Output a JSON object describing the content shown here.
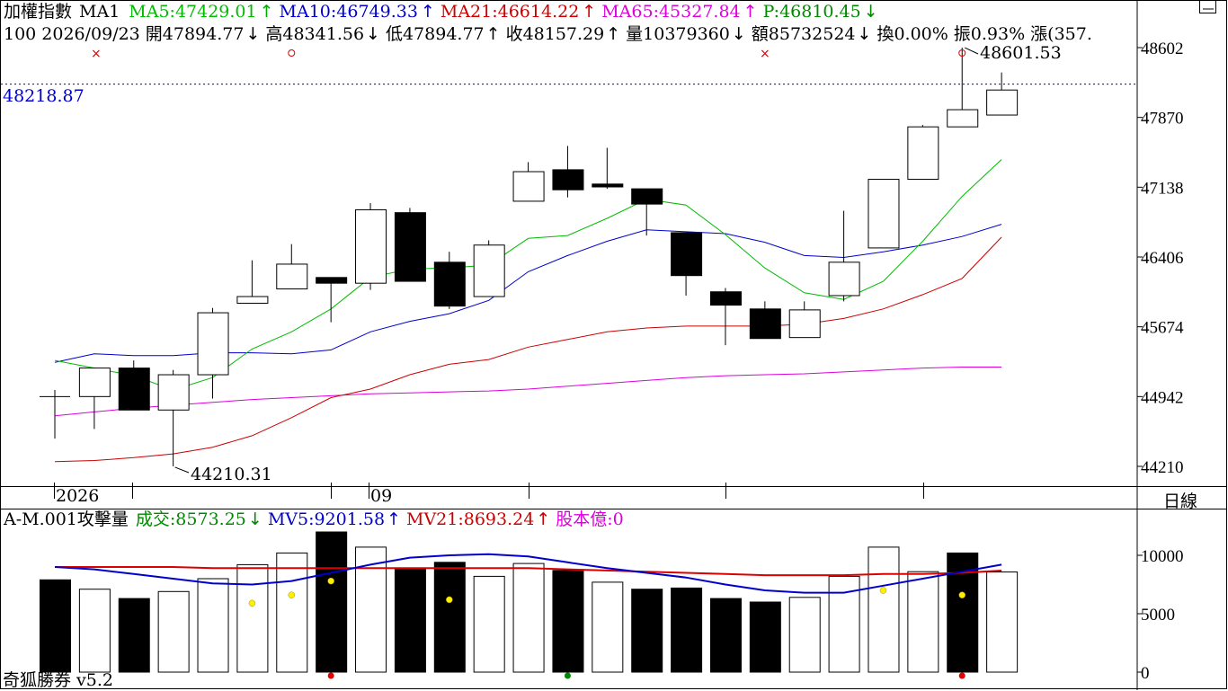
{
  "price_header": {
    "title": "加權指數",
    "ma_label": "MA1",
    "ma5": "MA5:47429.01",
    "ma10": "MA10:46749.33",
    "ma21": "MA21:46614.22",
    "ma65": "MA65:45327.84",
    "p": "P:46810.45"
  },
  "quote_line": {
    "no": "100",
    "date": "2026/09/23",
    "open": "開47894.77",
    "high": "高48341.56",
    "low": "低47894.77",
    "close": "收48157.29",
    "volume": "量10379360",
    "amount": "額85732524",
    "turnover": "換0.00%",
    "amplitude": "振0.93%",
    "change": "漲(357."
  },
  "cursor_value": "48218.87",
  "max_label": "48601.53",
  "min_label": "44210.31",
  "timeframe_label": "日線",
  "x_labels": [
    "2026",
    "09"
  ],
  "volume_header": {
    "title": "A-M.001攻擊量",
    "volume": "成交:8573.25",
    "mv5": "MV5:9201.58",
    "mv21": "MV21:8693.24",
    "capital": "股本億:0"
  },
  "footer": "奇狐勝券 v5.2",
  "colors": {
    "ma5": "#00bb00",
    "ma10": "#0000cc",
    "ma21": "#cc0000",
    "ma65": "#dd00dd",
    "p": "#008800",
    "up_arrow_ma": "#00aa00",
    "grid": "#000000"
  },
  "chart_data": [
    {
      "type": "candlestick",
      "yticks": [
        48602,
        47870,
        47138,
        46406,
        45674,
        44942,
        44210
      ],
      "ylim": [
        44210,
        48602
      ],
      "dotted_line_value": 48218.87,
      "candles": [
        {
          "o": 44942,
          "h": 45011,
          "l": 44501,
          "c": 44942
        },
        {
          "o": 44942,
          "h": 45241,
          "l": 44602,
          "c": 45241
        },
        {
          "o": 45241,
          "h": 45321,
          "l": 44801,
          "c": 44801
        },
        {
          "o": 44801,
          "h": 45221,
          "l": 44210.31,
          "c": 45171
        },
        {
          "o": 45171,
          "h": 45871,
          "l": 44921,
          "c": 45821
        },
        {
          "o": 45921,
          "h": 46371,
          "l": 45921,
          "c": 45991
        },
        {
          "o": 46071,
          "h": 46541,
          "l": 46071,
          "c": 46331
        },
        {
          "o": 46191,
          "h": 46191,
          "l": 45721,
          "c": 46131
        },
        {
          "o": 46131,
          "h": 46971,
          "l": 46061,
          "c": 46901
        },
        {
          "o": 46871,
          "h": 46921,
          "l": 46151,
          "c": 46151
        },
        {
          "o": 46351,
          "h": 46461,
          "l": 45861,
          "c": 45891
        },
        {
          "o": 45991,
          "h": 46581,
          "l": 45991,
          "c": 46531
        },
        {
          "o": 46991,
          "h": 47401,
          "l": 46991,
          "c": 47301
        },
        {
          "o": 47321,
          "h": 47571,
          "l": 47031,
          "c": 47111
        },
        {
          "o": 47171,
          "h": 47551,
          "l": 47121,
          "c": 47141
        },
        {
          "o": 47121,
          "h": 47121,
          "l": 46631,
          "c": 46961
        },
        {
          "o": 46661,
          "h": 46661,
          "l": 46001,
          "c": 46211
        },
        {
          "o": 46041,
          "h": 46081,
          "l": 45481,
          "c": 45901
        },
        {
          "o": 45861,
          "h": 45941,
          "l": 45551,
          "c": 45551
        },
        {
          "o": 45561,
          "h": 45941,
          "l": 45561,
          "c": 45851
        },
        {
          "o": 46001,
          "h": 46891,
          "l": 45941,
          "c": 46351
        },
        {
          "o": 46501,
          "h": 47221,
          "l": 46501,
          "c": 47221
        },
        {
          "o": 47221,
          "h": 47791,
          "l": 47221,
          "c": 47771
        },
        {
          "o": 47771,
          "h": 48601.53,
          "l": 47771,
          "c": 47951
        },
        {
          "o": 47894.77,
          "h": 48341.56,
          "l": 47894.77,
          "c": 48157.29
        }
      ],
      "ma5": [
        45321,
        45241,
        45161,
        45011,
        45141,
        45441,
        45621,
        45861,
        46191,
        46281,
        46291,
        46321,
        46601,
        46631,
        46811,
        47011,
        46951,
        46641,
        46291,
        46031,
        45961,
        46151,
        46571,
        47041,
        47429.01
      ],
      "ma10": [
        45301,
        45391,
        45371,
        45371,
        45401,
        45401,
        45391,
        45431,
        45621,
        45731,
        45811,
        45951,
        46251,
        46421,
        46571,
        46691,
        46671,
        46651,
        46561,
        46421,
        46401,
        46461,
        46531,
        46621,
        46749.33
      ],
      "ma21": [
        44260,
        44271,
        44301,
        44341,
        44411,
        44531,
        44721,
        44931,
        45021,
        45171,
        45281,
        45331,
        45461,
        45541,
        45621,
        45661,
        45681,
        45681,
        45681,
        45701,
        45761,
        45861,
        46011,
        46181,
        46614.22
      ],
      "ma65": [
        44741,
        44781,
        44821,
        44851,
        44881,
        44911,
        44931,
        44951,
        44971,
        44981,
        44991,
        45001,
        45021,
        45051,
        45081,
        45111,
        45141,
        45161,
        45171,
        45181,
        45201,
        45221,
        45241,
        45251,
        45251
      ],
      "markers": [
        {
          "index": 1,
          "shape": "x"
        },
        {
          "index": 6,
          "shape": "o"
        },
        {
          "index": 18,
          "shape": "x"
        },
        {
          "index": 23,
          "shape": "o"
        }
      ]
    },
    {
      "type": "bar",
      "yticks": [
        10000,
        5000,
        0
      ],
      "ylim": [
        0,
        12000
      ],
      "bars": [
        {
          "v": 7900,
          "filled": true
        },
        {
          "v": 7100,
          "filled": false
        },
        {
          "v": 6300,
          "filled": true
        },
        {
          "v": 6900,
          "filled": false
        },
        {
          "v": 8000,
          "filled": false
        },
        {
          "v": 9200,
          "filled": false
        },
        {
          "v": 10200,
          "filled": false
        },
        {
          "v": 12000,
          "filled": true
        },
        {
          "v": 10700,
          "filled": false
        },
        {
          "v": 8900,
          "filled": true
        },
        {
          "v": 9400,
          "filled": true
        },
        {
          "v": 8200,
          "filled": false
        },
        {
          "v": 9300,
          "filled": false
        },
        {
          "v": 8700,
          "filled": true
        },
        {
          "v": 7700,
          "filled": false
        },
        {
          "v": 7100,
          "filled": true
        },
        {
          "v": 7200,
          "filled": true
        },
        {
          "v": 6300,
          "filled": true
        },
        {
          "v": 6000,
          "filled": true
        },
        {
          "v": 6400,
          "filled": false
        },
        {
          "v": 8200,
          "filled": false
        },
        {
          "v": 10700,
          "filled": false
        },
        {
          "v": 8600,
          "filled": false
        },
        {
          "v": 10200,
          "filled": true
        },
        {
          "v": 8573.25,
          "filled": false
        }
      ],
      "mv5": [
        9000,
        8800,
        8400,
        8000,
        7600,
        7500,
        7800,
        8500,
        9200,
        9800,
        10000,
        10100,
        9900,
        9400,
        8900,
        8500,
        8100,
        7500,
        7000,
        6800,
        6800,
        7400,
        8000,
        8600,
        9201.58
      ],
      "mv21": [
        9000,
        9000,
        9000,
        9000,
        8900,
        8900,
        8900,
        8900,
        8900,
        8900,
        8900,
        8900,
        8900,
        8800,
        8700,
        8600,
        8500,
        8400,
        8300,
        8300,
        8300,
        8400,
        8400,
        8500,
        8693.24
      ],
      "yellow_dots": [
        {
          "index": 5,
          "v": 5900
        },
        {
          "index": 6,
          "v": 6600
        },
        {
          "index": 7,
          "v": 7800
        },
        {
          "index": 10,
          "v": 6200
        },
        {
          "index": 21,
          "v": 7000
        },
        {
          "index": 23,
          "v": 6600
        }
      ],
      "bottom_dots": [
        {
          "index": 7,
          "color": "#dd0000"
        },
        {
          "index": 13,
          "color": "#008800"
        },
        {
          "index": 23,
          "color": "#dd0000"
        }
      ]
    }
  ]
}
